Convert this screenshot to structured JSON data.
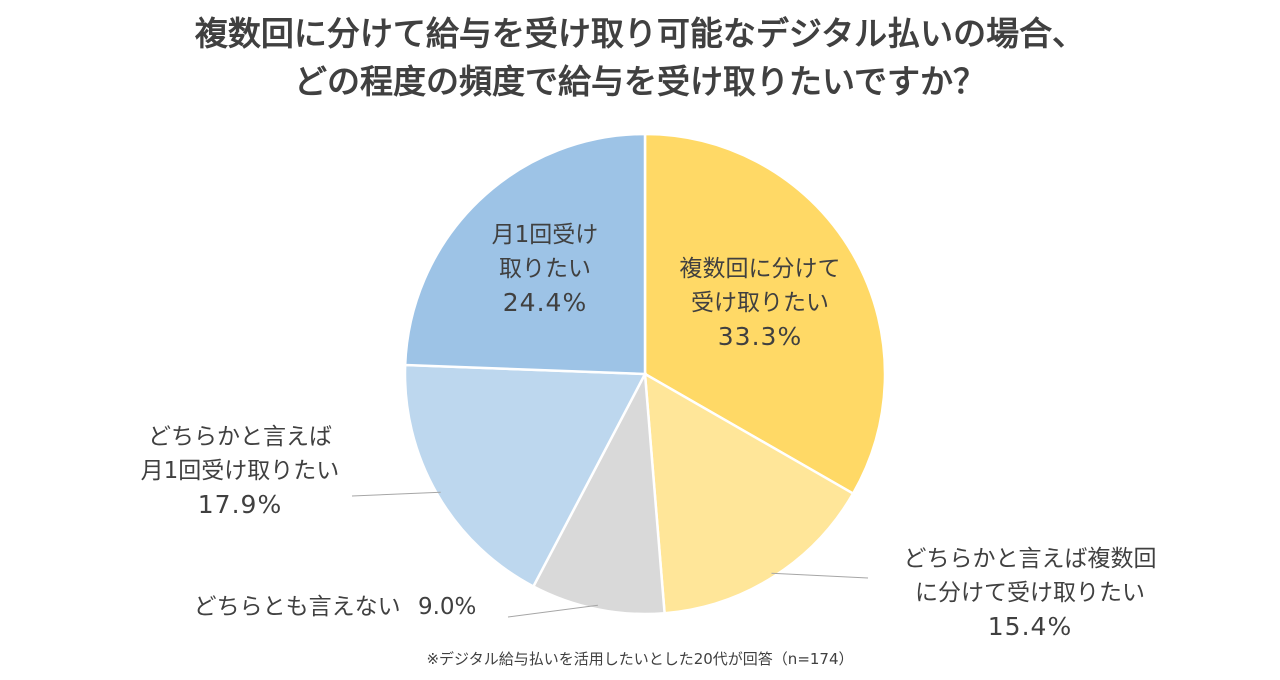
{
  "chart_data": {
    "type": "pie",
    "title_lines": [
      "複数回に分けて給与を受け取り可能なデジタル払いの場合、",
      "どの程度の頻度で給与を受け取りたいですか？"
    ],
    "slices": [
      {
        "label_lines": [
          "複数回に分けて",
          "受け取りたい"
        ],
        "value": 33.3,
        "value_label": "33.3%",
        "color": "#FFD966"
      },
      {
        "label_lines": [
          "どちらかと言えば複数回",
          "に分けて受け取りたい"
        ],
        "value": 15.4,
        "value_label": "15.4%",
        "color": "#FFE699"
      },
      {
        "label_lines": [
          "どちらとも言えない"
        ],
        "value": 9.0,
        "value_label": "9.0%",
        "color": "#D9D9D9"
      },
      {
        "label_lines": [
          "どちらかと言えば",
          "月1回受け取りたい"
        ],
        "value": 17.9,
        "value_label": "17.9%",
        "color": "#BDD7EE"
      },
      {
        "label_lines": [
          "月1回受け",
          "取りたい"
        ],
        "value": 24.4,
        "value_label": "24.4%",
        "color": "#9DC3E6"
      }
    ],
    "footnote": "※デジタル給与払いを活用したいとした20代が回答（n=174）"
  }
}
